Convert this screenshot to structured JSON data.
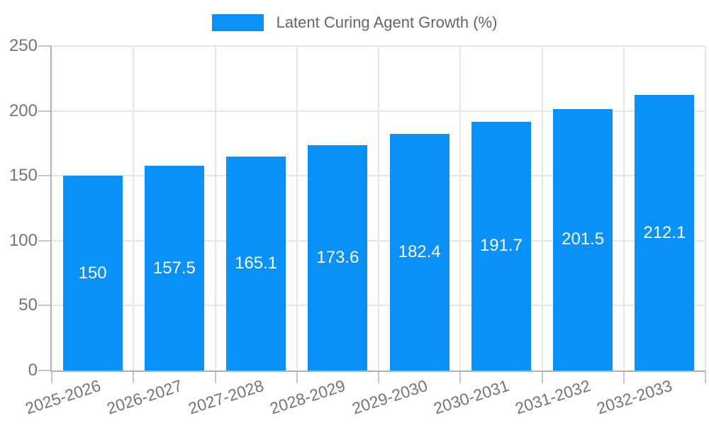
{
  "legend": {
    "label": "Latent Curing Agent Growth (%)"
  },
  "chart_data": {
    "type": "bar",
    "title": "",
    "xlabel": "",
    "ylabel": "",
    "categories": [
      "2025-2026",
      "2026-2027",
      "2027-2028",
      "2028-2029",
      "2029-2030",
      "2030-2031",
      "2031-2032",
      "2032-2033"
    ],
    "series": [
      {
        "name": "Latent Curing Agent Growth (%)",
        "values": [
          150,
          157.5,
          165.1,
          173.6,
          182.4,
          191.7,
          201.5,
          212.1
        ],
        "value_labels": [
          "150",
          "157.5",
          "165.1",
          "173.6",
          "182.4",
          "191.7",
          "201.5",
          "212.1"
        ]
      }
    ],
    "ylim": [
      0,
      250
    ],
    "yticks": [
      0,
      50,
      100,
      150,
      200,
      250
    ],
    "grid": true,
    "legend_position": "top",
    "value_labels_shown": true,
    "value_label_position": "inside-center"
  },
  "colors": {
    "bar": "#0A91F8",
    "value_label": "#ffffff",
    "gridline": "#e6e6e6",
    "axis_line": "#b0b0b0",
    "tick_mark": "#c6c6c6",
    "tick_label": "#757575",
    "legend_text": "#666666",
    "background": "#ffffff"
  }
}
